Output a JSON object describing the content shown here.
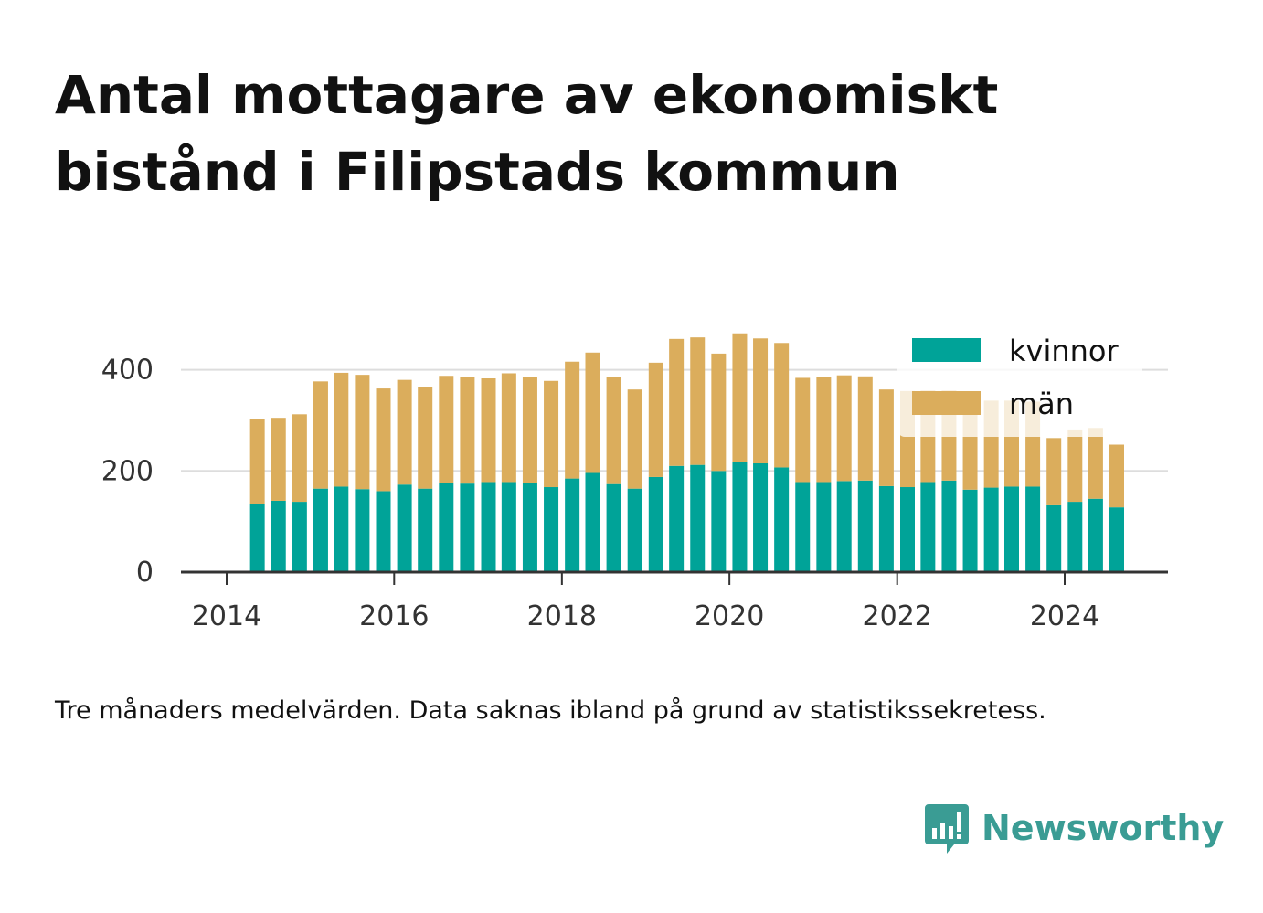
{
  "title": "Antal mottagare av ekonomiskt bistånd i Filipstads kommun",
  "footnote": "Tre månaders medelvärden. Data saknas ibland på grund av statistikssekretess.",
  "brand": {
    "name": "Newsworthy",
    "icon": "newsworthy-logo-icon"
  },
  "colors": {
    "kvinnor": "#00a398",
    "man": "#dbad5c",
    "text": "#111111",
    "grid": "#dddddd",
    "axis": "#333333"
  },
  "chart_data": {
    "type": "bar",
    "stacked": true,
    "x": [
      "2014-05",
      "2014-08",
      "2014-11",
      "2015-02",
      "2015-05",
      "2015-08",
      "2015-11",
      "2016-02",
      "2016-05",
      "2016-08",
      "2016-11",
      "2017-02",
      "2017-05",
      "2017-08",
      "2017-11",
      "2018-02",
      "2018-05",
      "2018-08",
      "2018-11",
      "2019-02",
      "2019-05",
      "2019-08",
      "2019-11",
      "2020-02",
      "2020-05",
      "2020-08",
      "2020-11",
      "2021-02",
      "2021-05",
      "2021-08",
      "2021-11",
      "2022-02",
      "2022-05",
      "2022-08",
      "2022-11",
      "2023-02",
      "2023-05",
      "2023-08",
      "2023-11",
      "2024-02",
      "2024-05",
      "2024-08"
    ],
    "series": [
      {
        "name": "kvinnor",
        "values": [
          135,
          141,
          139,
          165,
          169,
          164,
          160,
          173,
          165,
          176,
          175,
          178,
          178,
          177,
          168,
          185,
          196,
          174,
          165,
          188,
          210,
          212,
          200,
          218,
          215,
          207,
          178,
          178,
          180,
          181,
          170,
          168,
          178,
          181,
          163,
          167,
          169,
          169,
          132,
          139,
          145,
          128
        ]
      },
      {
        "name": "män",
        "values": [
          168,
          164,
          173,
          212,
          225,
          226,
          203,
          207,
          201,
          212,
          211,
          205,
          215,
          208,
          210,
          231,
          238,
          212,
          196,
          226,
          251,
          252,
          232,
          254,
          247,
          246,
          206,
          208,
          209,
          206,
          191,
          190,
          181,
          178,
          180,
          172,
          170,
          168,
          133,
          143,
          140,
          124
        ]
      }
    ],
    "xticks": [
      "2014",
      "2016",
      "2018",
      "2020",
      "2022",
      "2024"
    ],
    "yticks": [
      0,
      200,
      400
    ],
    "ylim": [
      0,
      480
    ],
    "xlim": [
      "2013-11-01",
      "2025-05-01"
    ],
    "legend": {
      "position": "top-right",
      "entries": [
        "kvinnor",
        "män"
      ]
    },
    "grid": "horizontal"
  }
}
